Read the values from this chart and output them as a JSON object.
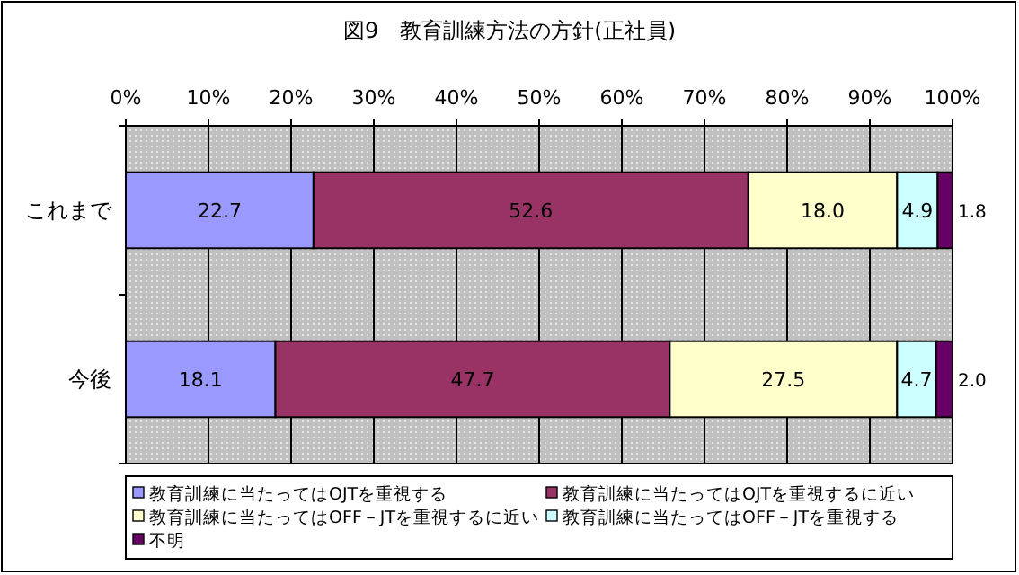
{
  "chart_data": {
    "type": "bar",
    "orientation": "horizontal",
    "stacked": true,
    "title": "図9　教育訓練方法の方針(正社員)",
    "categories": [
      "これまで",
      "今後"
    ],
    "series": [
      {
        "name": "教育訓練に当たってはOJTを重視する",
        "color": "#9999ff",
        "values": [
          22.7,
          18.1
        ],
        "value_labels": [
          "22.7",
          "18.1"
        ]
      },
      {
        "name": "教育訓練に当たってはOJTを重視するに近い",
        "color": "#993366",
        "values": [
          52.6,
          47.7
        ],
        "value_labels": [
          "52.6",
          "47.7"
        ]
      },
      {
        "name": "教育訓練に当たってはOFF－JTを重視するに近い",
        "color": "#ffffcc",
        "values": [
          18.0,
          27.5
        ],
        "value_labels": [
          "18.0",
          "27.5"
        ]
      },
      {
        "name": "教育訓練に当たってはOFF－JTを重視する",
        "color": "#ccffff",
        "values": [
          4.9,
          4.7
        ],
        "value_labels": [
          "4.9",
          "4.7"
        ]
      },
      {
        "name": "不明",
        "color": "#660066",
        "values": [
          1.8,
          2.0
        ],
        "value_labels": [
          "1.8",
          "2.0"
        ]
      }
    ],
    "xlim": [
      0,
      100
    ],
    "xticks": [
      {
        "value": 0,
        "label": "0%"
      },
      {
        "value": 10,
        "label": "10%"
      },
      {
        "value": 20,
        "label": "20%"
      },
      {
        "value": 30,
        "label": "30%"
      },
      {
        "value": 40,
        "label": "40%"
      },
      {
        "value": 50,
        "label": "50%"
      },
      {
        "value": 60,
        "label": "60%"
      },
      {
        "value": 70,
        "label": "70%"
      },
      {
        "value": 80,
        "label": "80%"
      },
      {
        "value": 90,
        "label": "90%"
      },
      {
        "value": 100,
        "label": "100%"
      }
    ],
    "grid": "x",
    "legend": "bottom"
  }
}
